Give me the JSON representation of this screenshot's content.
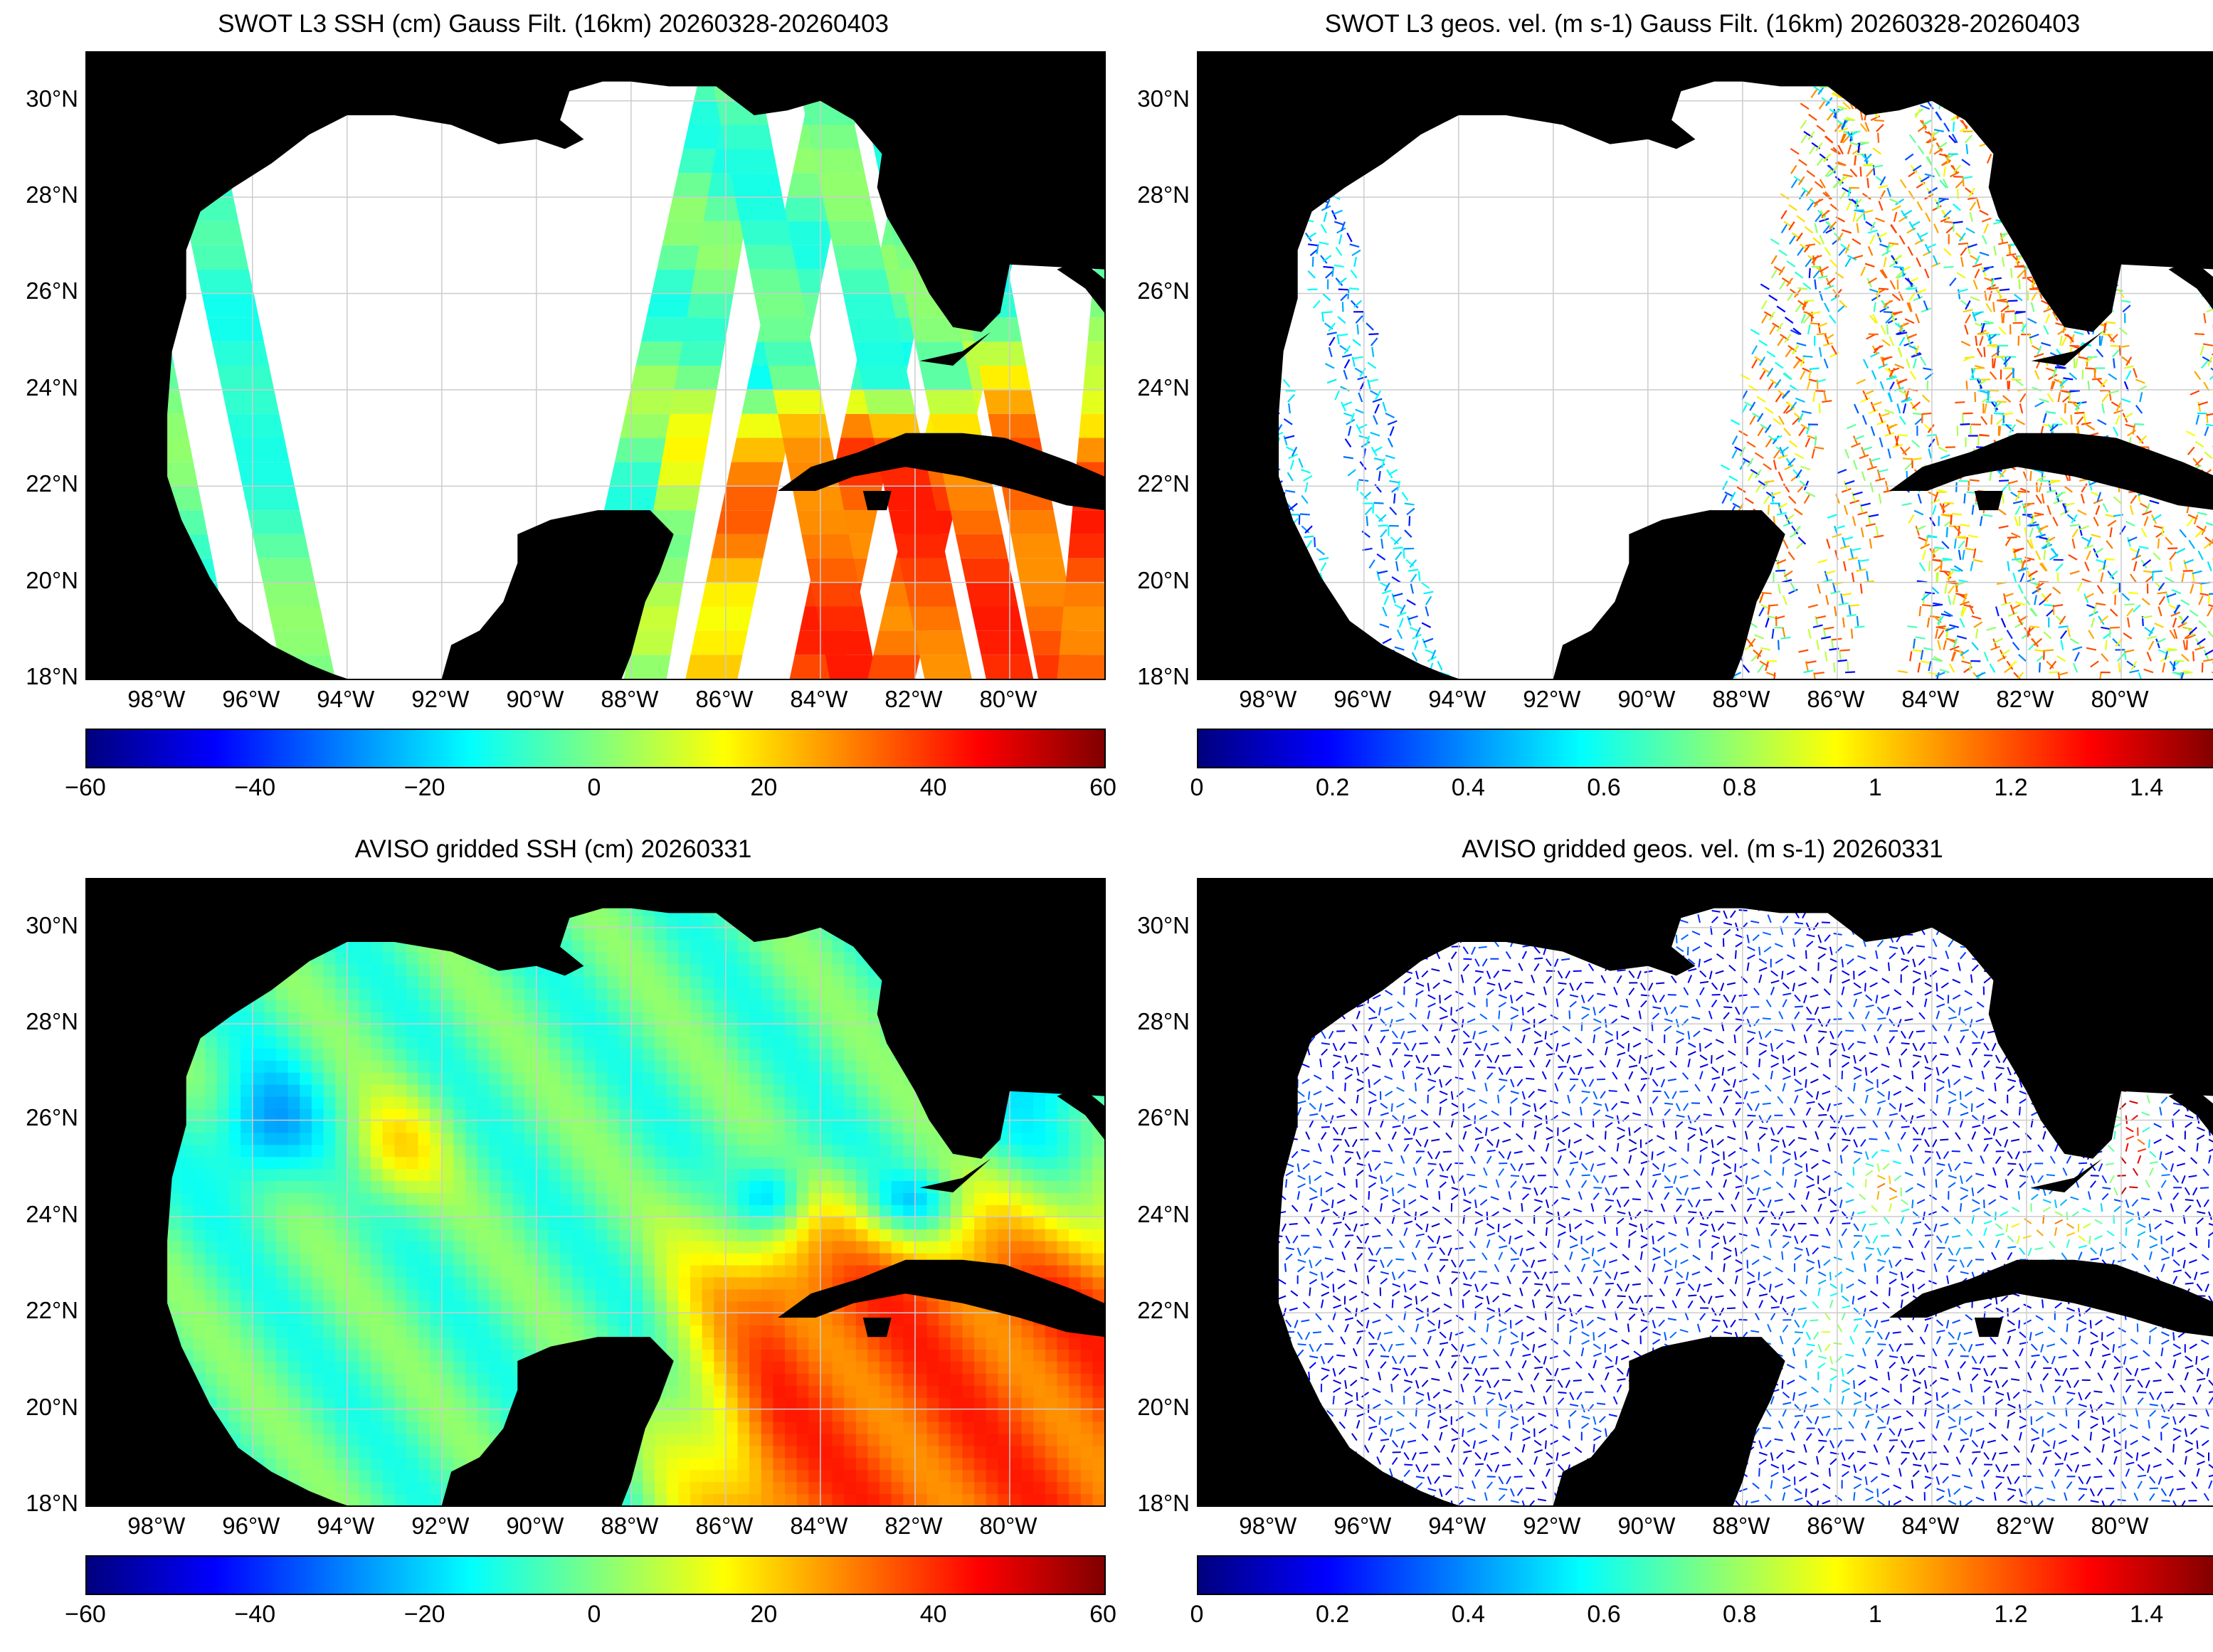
{
  "panels": [
    {
      "id": "p1",
      "title": "SWOT L3 SSH (cm) Gauss Filt. (16km) 20260328-20260403",
      "kind": "ssh-swath",
      "cbar_ticks": [
        "−60",
        "−40",
        "−20",
        "0",
        "20",
        "40",
        "60"
      ]
    },
    {
      "id": "p2",
      "title": "SWOT L3 geos. vel. (m s-1) Gauss Filt. (16km) 20260328-20260403",
      "kind": "vel-swath",
      "cbar_ticks": [
        "0",
        "0.2",
        "0.4",
        "0.6",
        "0.8",
        "1",
        "1.2",
        "1.4"
      ]
    },
    {
      "id": "p3",
      "title": "AVISO gridded SSH (cm) 20260331",
      "kind": "ssh-grid",
      "cbar_ticks": [
        "−60",
        "−40",
        "−20",
        "0",
        "20",
        "40",
        "60"
      ]
    },
    {
      "id": "p4",
      "title": "AVISO gridded geos. vel. (m s-1)  20260331",
      "kind": "vel-grid",
      "cbar_ticks": [
        "0",
        "0.2",
        "0.4",
        "0.6",
        "0.8",
        "1",
        "1.2",
        "1.4"
      ]
    }
  ],
  "lat_labels": [
    "30°N",
    "28°N",
    "26°N",
    "24°N",
    "22°N",
    "20°N",
    "18°N"
  ],
  "lon_labels": [
    "98°W",
    "96°W",
    "94°W",
    "92°W",
    "90°W",
    "88°W",
    "86°W",
    "84°W",
    "82°W",
    "80°W"
  ],
  "map_extent": {
    "lon": [
      -99.5,
      -78
    ],
    "lat": [
      18,
      31
    ]
  },
  "colormap": "jet",
  "colors": {
    "land": "#000000",
    "no_data": "#ffffff",
    "grid": "#cccccc"
  }
}
